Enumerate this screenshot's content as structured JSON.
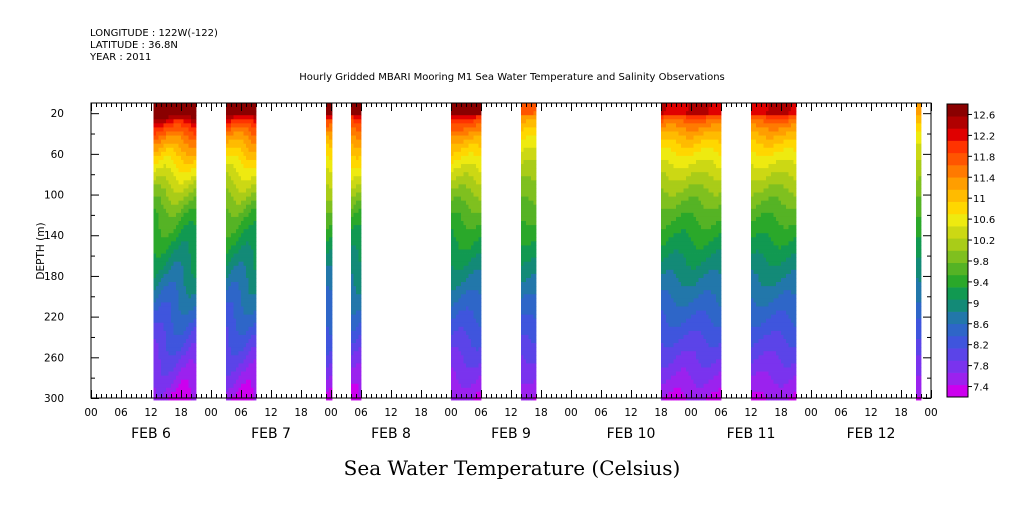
{
  "header": {
    "longitude": "LONGITUDE : 122W(-122)",
    "latitude": "LATITUDE : 36.8N",
    "year": "YEAR : 2011",
    "title": "Hourly Gridded MBARI Mooring M1 Sea Water Temperature and Salinity Observations"
  },
  "chart_data": {
    "type": "heatmap",
    "title": "Hourly Gridded MBARI Mooring M1 Sea Water Temperature and Salinity Observations",
    "xlabel": "",
    "ylabel": "DEPTH (m)",
    "variable_label": "Sea Water Temperature (Celsius)",
    "x_hours_range": [
      0,
      168
    ],
    "ylim": [
      300,
      10
    ],
    "y_ticks": [
      20,
      60,
      100,
      140,
      180,
      220,
      260,
      300
    ],
    "y_tick_labels": [
      "20",
      "60",
      "100",
      "140",
      "180",
      "220",
      "260",
      "300"
    ],
    "x_tick_labels": [
      "00",
      "06",
      "12",
      "18",
      "00",
      "06",
      "12",
      "18",
      "00",
      "06",
      "12",
      "18",
      "00",
      "06",
      "12",
      "18",
      "00",
      "06",
      "12",
      "18",
      "00",
      "06",
      "12",
      "18",
      "00",
      "06",
      "12",
      "18",
      "00"
    ],
    "day_labels": [
      "FEB 6",
      "FEB 7",
      "FEB 8",
      "FEB 9",
      "FEB 10",
      "FEB 11",
      "FEB 12"
    ],
    "colorbar": {
      "labels": [
        "12.6",
        "12.2",
        "11.8",
        "11.4",
        "11",
        "10.6",
        "10.2",
        "9.8",
        "9.4",
        "9",
        "8.6",
        "8.2",
        "7.8",
        "7.4"
      ],
      "min": 7.2,
      "max": 12.8,
      "step": 0.2,
      "colors": [
        "#cc00ee",
        "#9b22ee",
        "#7a33ee",
        "#5b44e8",
        "#3f55dd",
        "#2e66c8",
        "#2277aa",
        "#138a77",
        "#119951",
        "#2aa82a",
        "#55b325",
        "#7fc01f",
        "#a9cc18",
        "#ccd814",
        "#eeea10",
        "#ffd700",
        "#ffbb00",
        "#ff9e00",
        "#ff7a00",
        "#ff5500",
        "#ff3300",
        "#e00000",
        "#b00000",
        "#8a0000"
      ]
    },
    "segments": [
      {
        "start": 12.5,
        "end": 21,
        "surface": 12.3,
        "warmth": 1.0
      },
      {
        "start": 27,
        "end": 33,
        "surface": 12.1,
        "warmth": 0.95
      },
      {
        "start": 47,
        "end": 48.2,
        "surface": 12.0,
        "warmth": 0.85
      },
      {
        "start": 52,
        "end": 54,
        "surface": 12.0,
        "warmth": 0.85
      },
      {
        "start": 72,
        "end": 78,
        "surface": 11.9,
        "warmth": 0.6
      },
      {
        "start": 86,
        "end": 89,
        "surface": 11.0,
        "warmth": 0.3
      },
      {
        "start": 114,
        "end": 126,
        "surface": 11.6,
        "warmth": 0.5
      },
      {
        "start": 132,
        "end": 141,
        "surface": 11.6,
        "warmth": 0.45
      },
      {
        "start": 165,
        "end": 166,
        "surface": 10.8,
        "warmth": 0.1
      }
    ]
  }
}
